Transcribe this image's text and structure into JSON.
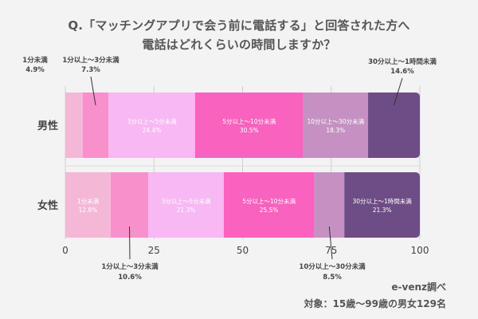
{
  "title_line1": "Q.「マッチングアプリで会う前に電話する」と回答された方へ",
  "title_line2": "電話はどれくらいの時間しますか？",
  "source_line1": "e-venz調べ",
  "source_line2": "対象：15歳〜99歳の男女129名",
  "chart_data": {
    "type": "bar",
    "stacked": true,
    "orientation": "horizontal",
    "percent": true,
    "categories": [
      "男性",
      "女性"
    ],
    "series": [
      {
        "name": "1分未満",
        "values": [
          4.9,
          12.8
        ],
        "color": "#f4b8d6"
      },
      {
        "name": "1分以上〜3分未満",
        "values": [
          7.3,
          10.6
        ],
        "color": "#f890cc"
      },
      {
        "name": "3分以上〜5分未満",
        "values": [
          24.4,
          21.3
        ],
        "color": "#f7b8f3"
      },
      {
        "name": "5分以上〜10分未満",
        "values": [
          30.5,
          25.5
        ],
        "color": "#f962bf"
      },
      {
        "name": "10分以上〜30分未満",
        "values": [
          18.3,
          8.5
        ],
        "color": "#c591c2"
      },
      {
        "name": "30分以上〜1時間未満",
        "values": [
          14.6,
          21.3
        ],
        "color": "#6e4c85"
      }
    ],
    "value_labels": [
      [
        "4.9%",
        "12.8%"
      ],
      [
        "7.3%",
        "10.6%"
      ],
      [
        "24.4%",
        "21.3%"
      ],
      [
        "30.5%",
        "25.5%"
      ],
      [
        "18.3%",
        "8.5%"
      ],
      [
        "14.6%",
        "21.3%"
      ]
    ],
    "xticks": [
      "0",
      "25",
      "50",
      "75",
      "100"
    ],
    "xtick_values": [
      0,
      25,
      50,
      75,
      100
    ],
    "xlim": [
      0,
      100
    ],
    "grid": true
  }
}
